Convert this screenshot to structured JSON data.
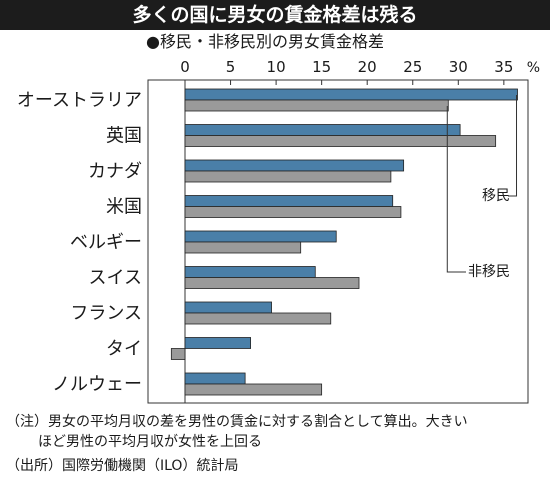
{
  "header": {
    "title": "多くの国に男女の賃金格差は残る",
    "subtitle": "●移民・非移民別の男女賃金格差"
  },
  "chart_data": {
    "type": "bar",
    "orientation": "horizontal",
    "unit": "%",
    "categories": [
      "オーストラリア",
      "英国",
      "カナダ",
      "米国",
      "ベルギー",
      "スイス",
      "フランス",
      "タイ",
      "ノルウェー"
    ],
    "series": [
      {
        "name": "移民",
        "color": "#4a7fa8",
        "values": [
          36.5,
          30.2,
          24,
          22.8,
          16.6,
          14.3,
          9.5,
          7.2,
          6.6
        ]
      },
      {
        "name": "非移民",
        "color": "#9a9a9a",
        "values": [
          28.9,
          34.1,
          22.6,
          23.7,
          12.7,
          19.1,
          16.0,
          -1.5,
          15.0
        ]
      }
    ],
    "x_ticks": [
      0,
      5,
      10,
      15,
      20,
      25,
      30,
      35
    ],
    "xlim": [
      -2,
      39
    ],
    "grid": false
  },
  "footnotes": {
    "note_line1": "（注）男女の平均月収の差を男性の賃金に対する割合として算出。大きい",
    "note_line2": "ほど男性の平均月収が女性を上回る",
    "source": "（出所）国際労働機関（ILO）統計局"
  }
}
